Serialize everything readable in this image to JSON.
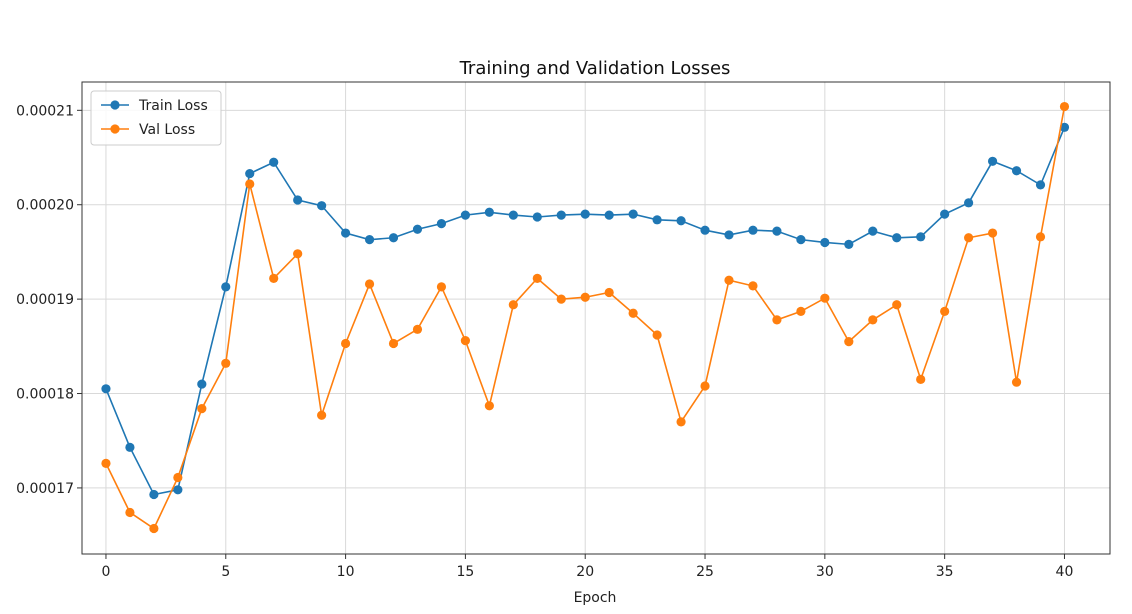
{
  "chart_data": {
    "type": "line",
    "title": "Training and Validation Losses",
    "xlabel": "Epoch",
    "ylabel": "",
    "xlim": [
      -1.0,
      41.9
    ],
    "ylim": [
      0.000163,
      0.000213
    ],
    "xticks": [
      0,
      5,
      10,
      15,
      20,
      25,
      30,
      35,
      40
    ],
    "xtick_labels": [
      "0",
      "5",
      "10",
      "15",
      "20",
      "25",
      "30",
      "35",
      "40"
    ],
    "yticks": [
      0.00017,
      0.00018,
      0.00019,
      0.0002,
      0.00021
    ],
    "ytick_labels": [
      "0.00017",
      "0.00018",
      "0.00019",
      "0.00020",
      "0.00021"
    ],
    "grid": true,
    "legend_position": "top-left",
    "x": [
      0,
      1,
      2,
      3,
      4,
      5,
      6,
      7,
      8,
      9,
      10,
      11,
      12,
      13,
      14,
      15,
      16,
      17,
      18,
      19,
      20,
      21,
      22,
      23,
      24,
      25,
      26,
      27,
      28,
      29,
      30,
      31,
      32,
      33,
      34,
      35,
      36,
      37,
      38,
      39,
      40
    ],
    "series": [
      {
        "name": "Train Loss",
        "color": "#1f77b4",
        "values": [
          0.0001805,
          0.0001743,
          0.0001693,
          0.0001698,
          0.000181,
          0.0001913,
          0.0002033,
          0.0002045,
          0.0002005,
          0.0001999,
          0.000197,
          0.0001963,
          0.0001965,
          0.0001974,
          0.000198,
          0.0001989,
          0.0001992,
          0.0001989,
          0.0001987,
          0.0001989,
          0.000199,
          0.0001989,
          0.000199,
          0.0001984,
          0.0001983,
          0.0001973,
          0.0001968,
          0.0001973,
          0.0001972,
          0.0001963,
          0.000196,
          0.0001958,
          0.0001972,
          0.0001965,
          0.0001966,
          0.000199,
          0.0002002,
          0.0002046,
          0.0002036,
          0.0002021,
          0.0002082
        ]
      },
      {
        "name": "Val Loss",
        "color": "#ff7f0e",
        "values": [
          0.0001726,
          0.0001674,
          0.0001657,
          0.0001711,
          0.0001784,
          0.0001832,
          0.0002022,
          0.0001922,
          0.0001948,
          0.0001777,
          0.0001853,
          0.0001916,
          0.0001853,
          0.0001868,
          0.0001913,
          0.0001856,
          0.0001787,
          0.0001894,
          0.0001922,
          0.00019,
          0.0001902,
          0.0001907,
          0.0001885,
          0.0001862,
          0.000177,
          0.0001808,
          0.000192,
          0.0001914,
          0.0001878,
          0.0001887,
          0.0001901,
          0.0001855,
          0.0001878,
          0.0001894,
          0.0001815,
          0.0001887,
          0.0001965,
          0.000197,
          0.0001812,
          0.0001966,
          0.0002104
        ]
      }
    ]
  }
}
